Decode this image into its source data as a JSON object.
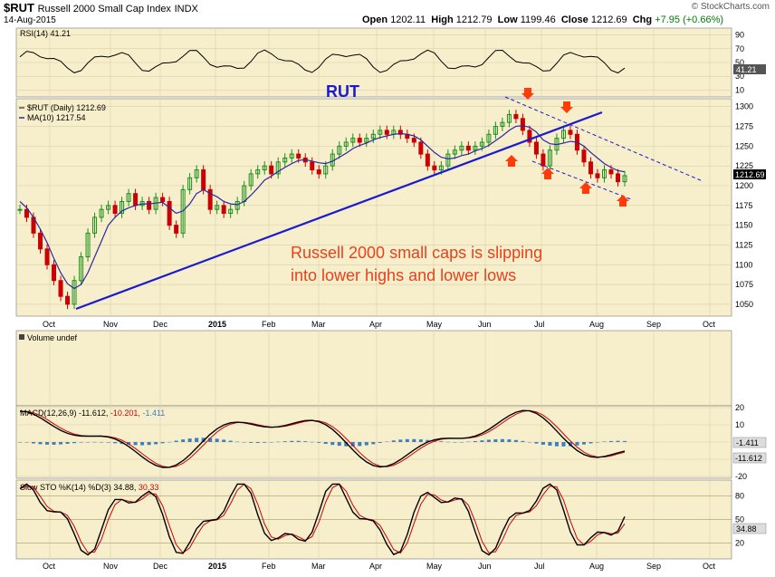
{
  "header": {
    "symbol": "$RUT",
    "name": "Russell 2000 Small Cap Index",
    "exchange": "INDX",
    "date": "14-Aug-2015",
    "open_label": "Open",
    "open": "1202.11",
    "high_label": "High",
    "high": "1212.79",
    "low_label": "Low",
    "low": "1199.46",
    "close_label": "Close",
    "close": "1212.69",
    "chg_label": "Chg",
    "chg": "+7.95 (+0.66%)",
    "chg_color": "#008000",
    "brand": "© StockCharts.com"
  },
  "panels": {
    "rsi_label": "RSI(14) 41.21",
    "rsi_last": "41.21",
    "rsi_ticks": [
      "90",
      "70",
      "50",
      "30",
      "10"
    ],
    "price_label": "$RUT (Daily) 1212.69",
    "ma_label": "MA(10) 1217.54",
    "price_last": "1212.69",
    "price_ticks": [
      "1300",
      "1275",
      "1250",
      "1225",
      "1200",
      "1175",
      "1150",
      "1125",
      "1100",
      "1075",
      "1050"
    ],
    "volume_label": "Volume undef",
    "macd_label_main": "MACD(12,26,9) -11.612,",
    "macd_label_signal": "-10.201,",
    "macd_label_hist": "-1.411",
    "macd_ticks": [
      "20",
      "10",
      "0",
      "-10",
      "-20"
    ],
    "macd_last_hist": "-1.411",
    "macd_last_main": "-11.612",
    "sto_label_main": "Slow STO %K(14) %D(3) 34.88,",
    "sto_label_signal": "30.33",
    "sto_ticks": [
      "80",
      "50",
      "20"
    ],
    "sto_last": "34.88"
  },
  "annotations": {
    "title": "RUT",
    "comment_line1": "Russell 2000 small caps is slipping",
    "comment_line2": "into lower highs and lower lows"
  },
  "colors": {
    "panel_bg": "#f7efcc",
    "up": "#1a8f1a",
    "down": "#cc0000",
    "ma": "#2a2aa0",
    "trend": "#1a1ad0",
    "arrow": "#ff3b0a",
    "comment": "#e8411b",
    "macd_hist": "#3a7fc0"
  },
  "chart_data": {
    "type": "line",
    "title": "Russell 2000 Small Cap Index",
    "x_labels": [
      "Oct",
      "Nov",
      "Dec",
      "2015",
      "Feb",
      "Mar",
      "Apr",
      "May",
      "Jun",
      "Jul",
      "Aug",
      "Sep",
      "Oct"
    ],
    "ylim": [
      1035,
      1310
    ],
    "series": [
      {
        "name": "$RUT (Daily)",
        "values": [
          1170,
          1160,
          1140,
          1120,
          1100,
          1080,
          1060,
          1050,
          1080,
          1110,
          1140,
          1160,
          1170,
          1175,
          1165,
          1180,
          1190,
          1175,
          1180,
          1170,
          1185,
          1180,
          1150,
          1140,
          1195,
          1210,
          1220,
          1195,
          1170,
          1175,
          1165,
          1170,
          1180,
          1200,
          1215,
          1220,
          1225,
          1215,
          1230,
          1235,
          1240,
          1235,
          1230,
          1220,
          1215,
          1225,
          1240,
          1250,
          1255,
          1260,
          1255,
          1260,
          1265,
          1270,
          1265,
          1270,
          1265,
          1260,
          1255,
          1240,
          1225,
          1220,
          1225,
          1240,
          1245,
          1250,
          1245,
          1250,
          1255,
          1265,
          1275,
          1280,
          1290,
          1285,
          1270,
          1255,
          1240,
          1225,
          1245,
          1260,
          1270,
          1265,
          1245,
          1230,
          1215,
          1210,
          1220,
          1215,
          1205,
          1212.69
        ]
      },
      {
        "name": "MA(10)",
        "values": [
          1180,
          1172,
          1160,
          1145,
          1128,
          1108,
          1090,
          1076,
          1070,
          1075,
          1090,
          1110,
          1130,
          1150,
          1160,
          1168,
          1172,
          1175,
          1177,
          1177,
          1178,
          1179,
          1172,
          1165,
          1168,
          1177,
          1190,
          1195,
          1190,
          1186,
          1180,
          1177,
          1176,
          1180,
          1188,
          1197,
          1207,
          1212,
          1218,
          1223,
          1228,
          1232,
          1233,
          1231,
          1229,
          1228,
          1231,
          1236,
          1241,
          1247,
          1251,
          1254,
          1258,
          1261,
          1263,
          1265,
          1266,
          1265,
          1263,
          1258,
          1250,
          1242,
          1236,
          1234,
          1235,
          1238,
          1240,
          1244,
          1247,
          1251,
          1257,
          1263,
          1270,
          1275,
          1276,
          1274,
          1268,
          1258,
          1253,
          1252,
          1254,
          1256,
          1255,
          1250,
          1242,
          1235,
          1228,
          1223,
          1219,
          1217.54
        ]
      }
    ]
  }
}
